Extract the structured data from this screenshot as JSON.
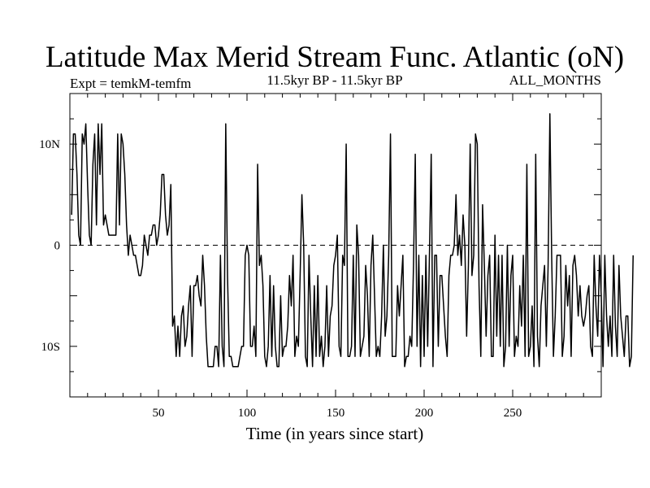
{
  "chart_data": {
    "type": "line",
    "title": "Latitude Max Merid Stream Func. Atlantic (oN)",
    "subtitle_left": "Expt = temkM-temfm",
    "subtitle_center": "11.5kyr BP - 11.5kyr BP",
    "subtitle_right": "ALL_MONTHS",
    "xlabel": "Time (in years since start)",
    "ylabel": "",
    "xlim": [
      0,
      300
    ],
    "ylim": [
      -15,
      15
    ],
    "x_ticks": [
      50,
      100,
      150,
      200,
      250
    ],
    "x_tick_labels": [
      "50",
      "100",
      "150",
      "200",
      "250"
    ],
    "y_ticks": [
      10,
      0,
      -10
    ],
    "y_tick_labels": [
      "10N",
      "0",
      "10S"
    ],
    "reference_line": 0,
    "series": [
      {
        "name": "Latitude Max Merid Stream Func. Atlantic",
        "x_start": 1,
        "x_step": 1,
        "values": [
          3,
          11,
          11,
          7,
          1,
          0,
          11,
          10,
          12,
          6,
          1,
          0,
          8,
          11,
          2,
          12,
          7,
          12,
          2,
          3,
          2,
          1,
          1,
          1,
          1,
          1,
          11,
          2,
          11,
          10,
          7,
          2,
          -1,
          1,
          0,
          -1,
          -1,
          -2,
          -3,
          -3,
          -2,
          1,
          0,
          -1,
          1,
          1,
          2,
          2,
          0,
          1,
          3,
          7,
          7,
          3,
          1,
          2,
          6,
          -8,
          -7,
          -11,
          -8,
          -11,
          -7,
          -6,
          -10,
          -9,
          -6,
          -4,
          -11,
          -4,
          -4,
          -3,
          -5,
          -6,
          -1,
          -4,
          -9,
          -12,
          -12,
          -12,
          -12,
          -10,
          -10,
          -12,
          -1,
          -10,
          -12,
          12,
          -3,
          -11,
          -11,
          -12,
          -12,
          -12,
          -12,
          -11,
          -10,
          -10,
          -1,
          0,
          -1,
          -10,
          -10,
          -8,
          -11,
          8,
          -2,
          -1,
          -4,
          -11,
          -12,
          -10,
          -3,
          -11,
          -4,
          -10,
          -12,
          -12,
          -5,
          -11,
          -10,
          -10,
          -8,
          -3,
          -6,
          -1,
          -11,
          -9,
          -10,
          -3,
          5,
          0,
          -11,
          -12,
          -1,
          -7,
          -12,
          -4,
          -11,
          -3,
          -11,
          -9,
          -12,
          -10,
          -4,
          -11,
          -7,
          -6,
          -2,
          -1,
          1,
          -10,
          -11,
          -1,
          -2,
          10,
          -11,
          -11,
          -10,
          -1,
          -11,
          2,
          -1,
          -11,
          -10,
          -9,
          -2,
          -5,
          -11,
          -2,
          1,
          -5,
          -11,
          -10,
          -11,
          -7,
          0,
          -9,
          -7,
          -1,
          11,
          -11,
          -11,
          -11,
          -4,
          -7,
          -4,
          -1,
          -12,
          -11,
          -11,
          -9,
          -10,
          -2,
          9,
          -10,
          -1,
          -12,
          -3,
          -11,
          -1,
          -10,
          -1,
          9,
          -12,
          -1,
          -1,
          -10,
          -3,
          -3,
          -6,
          -9,
          -11,
          -3,
          -1,
          -1,
          0,
          5,
          -1,
          1,
          -2,
          3,
          0,
          -9,
          -2,
          10,
          -3,
          -1,
          11,
          10,
          -4,
          -11,
          4,
          -2,
          -9,
          -3,
          -1,
          -11,
          -11,
          1,
          -9,
          -1,
          -10,
          -1,
          -12,
          -10,
          0,
          -10,
          -3,
          -1,
          -11,
          -9,
          -10,
          -4,
          -8,
          -1,
          -11,
          8,
          -11,
          -10,
          -6,
          -12,
          9,
          -9,
          -12,
          -6,
          -4,
          -2,
          -10,
          -2,
          13,
          -1,
          -11,
          -7,
          -1,
          -1,
          -1,
          -11,
          -9,
          -2,
          -6,
          -3,
          -11,
          -2,
          -1,
          -3,
          -7,
          -4,
          -7,
          -8,
          -7,
          -5,
          -4,
          -10,
          -11,
          -1,
          -6,
          -9,
          -1,
          -5,
          -12,
          -1,
          -7,
          -10,
          -7,
          -11,
          -1,
          -8,
          -11,
          -2,
          -7,
          -9,
          -11,
          -7,
          -7,
          -12,
          -11,
          -1
        ]
      }
    ]
  }
}
